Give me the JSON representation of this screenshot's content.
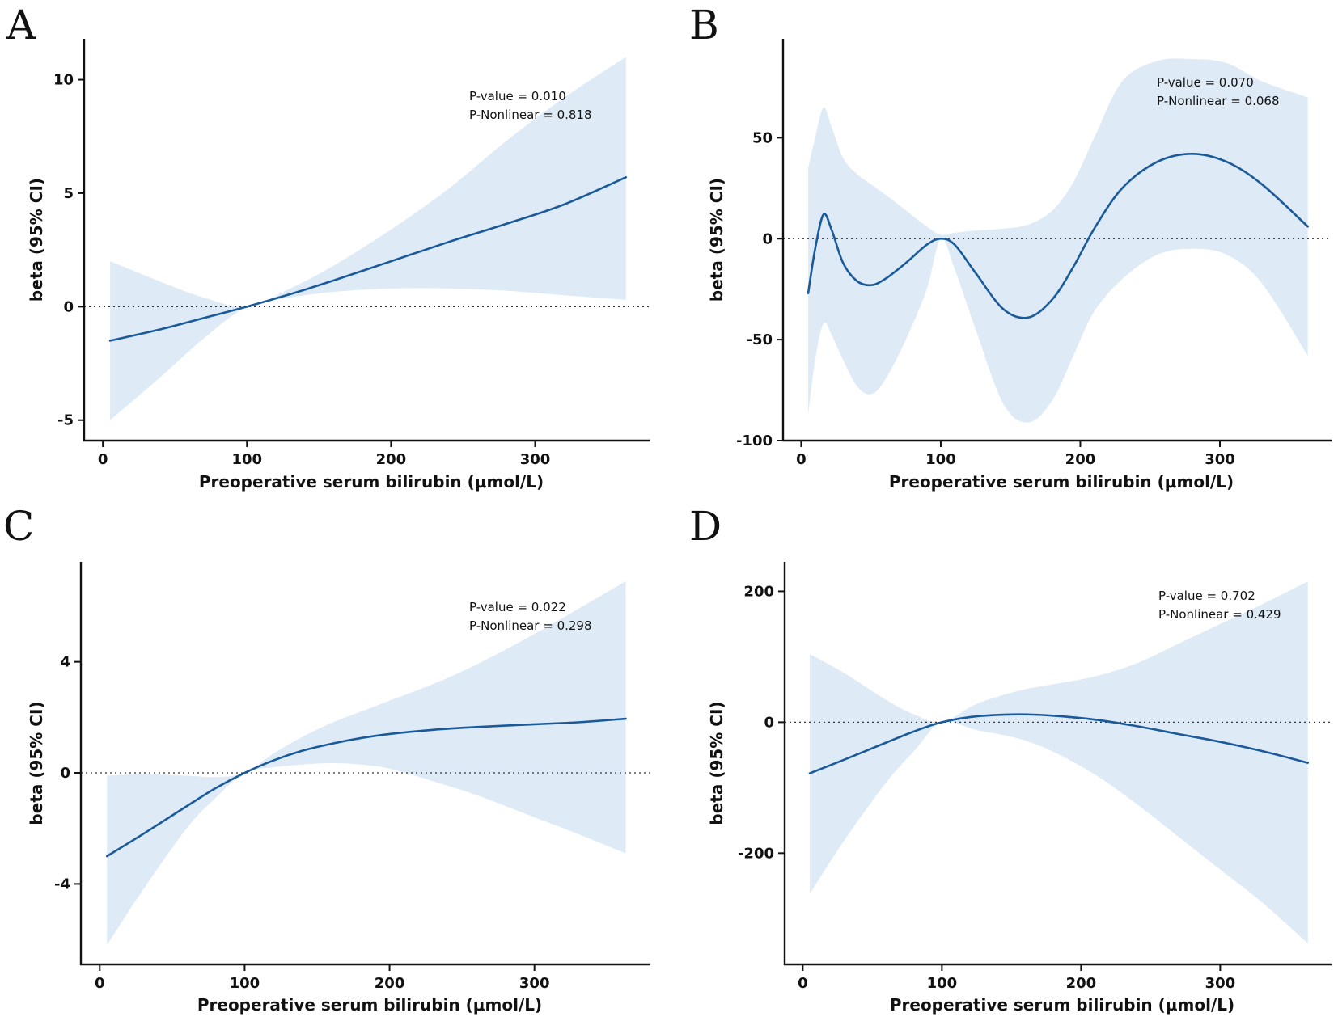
{
  "colors": {
    "line": "#1a5a9a",
    "band": "#deebf7"
  },
  "chart_data": [
    {
      "panel": "A",
      "type": "line",
      "xlabel": "Preoperative serum bilirubin (μmol/L)",
      "ylabel": "beta (95% CI)",
      "xlim": [
        -13,
        380
      ],
      "ylim": [
        -5.9,
        11.8
      ],
      "xticks": [
        0,
        100,
        200,
        300
      ],
      "xtick_labels": [
        "0",
        "100",
        "200",
        "300"
      ],
      "yticks": [
        10,
        5,
        0,
        -5
      ],
      "ytick_labels": [
        "10",
        "5",
        "0",
        "-5"
      ],
      "reference_line": 0,
      "annotation": [
        "P-value = 0.010",
        "P-Nonlinear = 0.818"
      ],
      "x": [
        5,
        40,
        70,
        100,
        130,
        160,
        200,
        240,
        280,
        320,
        363
      ],
      "y": [
        -1.5,
        -1.0,
        -0.5,
        0.0,
        0.55,
        1.15,
        2.0,
        2.85,
        3.65,
        4.5,
        5.7
      ],
      "lower": [
        -5.0,
        -3.1,
        -1.4,
        0.0,
        0.4,
        0.65,
        0.8,
        0.8,
        0.7,
        0.5,
        0.3
      ],
      "upper": [
        2.0,
        1.1,
        0.4,
        0.0,
        0.8,
        1.8,
        3.4,
        5.2,
        7.3,
        9.2,
        11.0
      ]
    },
    {
      "panel": "B",
      "type": "line",
      "xlabel": "Preoperative serum bilirubin (μmol/L)",
      "ylabel": "beta (95% CI)",
      "xlim": [
        -13,
        380
      ],
      "ylim": [
        -100,
        99
      ],
      "xticks": [
        0,
        100,
        200,
        300
      ],
      "xtick_labels": [
        "0",
        "100",
        "200",
        "300"
      ],
      "yticks": [
        50,
        0,
        -50,
        -100
      ],
      "ytick_labels": [
        "50",
        "0",
        "-50",
        "-100"
      ],
      "reference_line": 0,
      "annotation": [
        "P-value = 0.070",
        "P-Nonlinear = 0.068"
      ],
      "x": [
        5,
        10,
        16,
        22,
        30,
        40,
        50,
        60,
        75,
        90,
        100,
        110,
        125,
        145,
        163,
        180,
        195,
        210,
        230,
        255,
        280,
        305,
        330,
        363
      ],
      "y": [
        -27,
        -5,
        12,
        4,
        -12,
        -21,
        -23,
        -20,
        -12,
        -3,
        0,
        -3,
        -17,
        -35,
        -39,
        -30,
        -14,
        5,
        25,
        38,
        42,
        38,
        27,
        6
      ],
      "lower": [
        -87,
        -60,
        -42,
        -48,
        -60,
        -73,
        -77,
        -70,
        -50,
        -25,
        0,
        -15,
        -45,
        -82,
        -91,
        -80,
        -58,
        -36,
        -20,
        -8,
        -5,
        -8,
        -22,
        -58
      ],
      "upper": [
        35,
        50,
        65,
        55,
        40,
        32,
        27,
        22,
        14,
        6,
        2,
        3,
        4,
        5,
        7,
        14,
        28,
        50,
        78,
        88,
        89,
        87,
        78,
        70
      ]
    },
    {
      "panel": "C",
      "type": "line",
      "xlabel": "Preoperative serum bilirubin (μmol/L)",
      "ylabel": "beta (95% CI)",
      "xlim": [
        -13,
        380
      ],
      "ylim": [
        -6.9,
        7.6
      ],
      "xticks": [
        0,
        100,
        200,
        300
      ],
      "xtick_labels": [
        "0",
        "100",
        "200",
        "300"
      ],
      "yticks": [
        4,
        0,
        -4
      ],
      "ytick_labels": [
        "4",
        "0",
        "-4"
      ],
      "reference_line": 0,
      "annotation": [
        "P-value = 0.022",
        "P-Nonlinear = 0.298"
      ],
      "x": [
        5,
        30,
        60,
        80,
        100,
        120,
        140,
        160,
        180,
        200,
        230,
        260,
        300,
        330,
        363
      ],
      "y": [
        -3.0,
        -2.2,
        -1.2,
        -0.55,
        0.0,
        0.45,
        0.8,
        1.05,
        1.25,
        1.4,
        1.55,
        1.65,
        1.75,
        1.82,
        1.95
      ],
      "lower": [
        -6.2,
        -4.2,
        -2.0,
        -0.9,
        0.0,
        0.2,
        0.3,
        0.35,
        0.3,
        0.15,
        -0.3,
        -0.8,
        -1.6,
        -2.2,
        -2.9
      ],
      "upper": [
        -0.1,
        -0.05,
        -0.1,
        -0.15,
        0.0,
        0.7,
        1.3,
        1.8,
        2.2,
        2.6,
        3.2,
        3.9,
        5.0,
        5.9,
        6.9
      ]
    },
    {
      "panel": "D",
      "type": "line",
      "xlabel": "Preoperative serum bilirubin (μmol/L)",
      "ylabel": "beta (95% CI)",
      "xlim": [
        -13,
        380
      ],
      "ylim": [
        -370,
        245
      ],
      "xticks": [
        0,
        100,
        200,
        300
      ],
      "xtick_labels": [
        "0",
        "100",
        "200",
        "300"
      ],
      "yticks": [
        200,
        0,
        -200
      ],
      "ytick_labels": [
        "200",
        "0",
        "-200"
      ],
      "reference_line": 0,
      "annotation": [
        "P-value = 0.702",
        "P-Nonlinear = 0.429"
      ],
      "x": [
        5,
        30,
        60,
        80,
        100,
        125,
        155,
        180,
        210,
        240,
        270,
        300,
        330,
        363
      ],
      "y": [
        -78,
        -57,
        -31,
        -14,
        0,
        9,
        12,
        10,
        4,
        -6,
        -18,
        -30,
        -44,
        -62
      ],
      "lower": [
        -262,
        -180,
        -92,
        -44,
        0,
        -12,
        -25,
        -45,
        -80,
        -125,
        -175,
        -225,
        -275,
        -338
      ],
      "upper": [
        104,
        75,
        34,
        12,
        0,
        28,
        48,
        58,
        70,
        90,
        120,
        150,
        180,
        215
      ]
    }
  ]
}
